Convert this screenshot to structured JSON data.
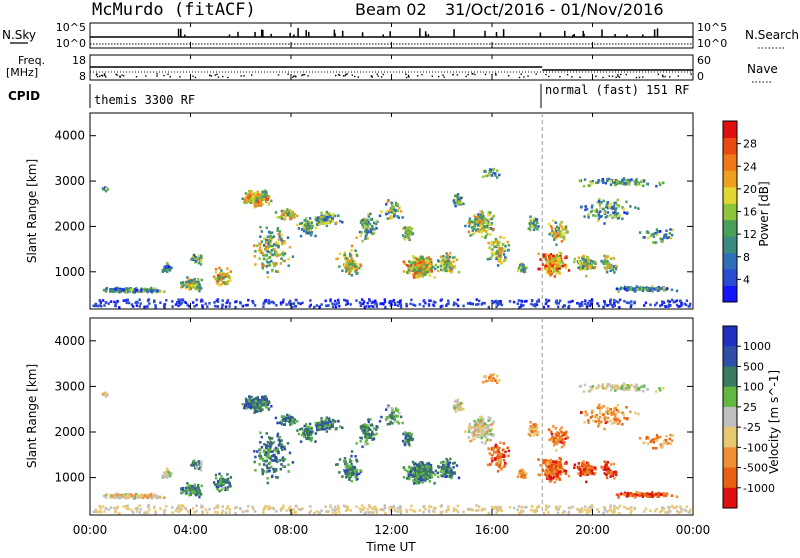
{
  "header": {
    "station": "McMurdo (fitACF)",
    "beam": "Beam 02",
    "date_range": "31/Oct/2016 - 01/Nov/2016"
  },
  "strip": {
    "nsky_label": "N.Sky",
    "nsky_ticks": [
      "10^5",
      "10^0"
    ],
    "nsearch_label": "N.Search",
    "nsearch_ticks": [
      "10^5",
      "10^0"
    ],
    "freq_label": "Freq.",
    "freq_unit": "[MHz]",
    "freq_ticks": [
      "18",
      "8"
    ],
    "nave_label": "Nave",
    "nave_ticks": [
      "60",
      "0"
    ],
    "cpid_label": "CPID",
    "cpid_modes": [
      {
        "text": "themis 3300 RF",
        "start_hour": 0
      },
      {
        "text": "normal (fast) 151 RF",
        "start_hour": 18
      }
    ]
  },
  "chart_data": [
    {
      "type": "heatmap",
      "title": "Power",
      "ylabel": "Slant Range [km]",
      "xlabel": "",
      "ylim": [
        180,
        4500
      ],
      "yticks": [
        "1000",
        "2000",
        "3000",
        "4000"
      ],
      "colorbar": {
        "label": "Power [dB]",
        "ticks": [
          "4",
          "8",
          "12",
          "16",
          "20",
          "24",
          "28"
        ],
        "range": [
          0,
          30
        ],
        "colors": [
          "#1414ff",
          "#2b4cd0",
          "#2f6fb8",
          "#3a8a80",
          "#4aa05a",
          "#8cc43a",
          "#e0d830",
          "#f0a020",
          "#f07818",
          "#ea4a10",
          "#e01010"
        ]
      }
    },
    {
      "type": "heatmap",
      "title": "Velocity",
      "ylabel": "Slant Range [km]",
      "xlabel": "Time UT",
      "ylim": [
        180,
        4500
      ],
      "yticks": [
        "1000",
        "2000",
        "3000",
        "4000"
      ],
      "xticks": [
        "00:00",
        "04:00",
        "08:00",
        "12:00",
        "16:00",
        "20:00",
        "00:00"
      ],
      "xlim_hours": [
        0,
        24
      ],
      "colorbar": {
        "label": "Velocity [m s^-1]",
        "ticks": [
          "1000",
          "500",
          "100",
          "25",
          "-25",
          "-100",
          "-500",
          "-1000"
        ],
        "colors": [
          "#2030c0",
          "#3050a8",
          "#3a7a60",
          "#60b840",
          "#c0c0c0",
          "#e8c870",
          "#f09030",
          "#e86010",
          "#e01010"
        ]
      }
    }
  ]
}
